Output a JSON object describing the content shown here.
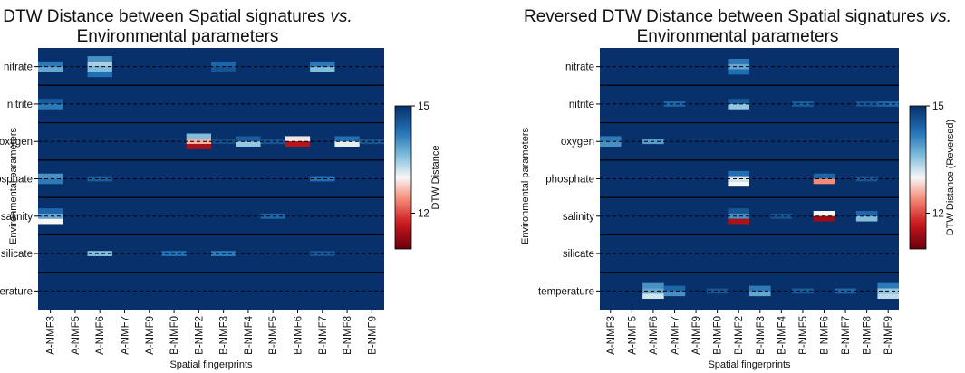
{
  "chart_data": [
    {
      "type": "heatmap",
      "title_line1": "DTW Distance between Spatial signatures",
      "title_vs": "vs.",
      "title_line2": "Environmental parameters",
      "xlabel": "Spatial fingerprints",
      "ylabel": "Environmental parameters",
      "colorbar_label": "DTW Distance",
      "colorbar_ticks": [
        "15",
        "12"
      ],
      "colorbar_range": [
        11,
        15
      ],
      "rows": [
        "nitrate",
        "nitrite",
        "oxygen",
        "phosphate",
        "salinity",
        "silicate",
        "temperature"
      ],
      "columns": [
        "A-NMF3",
        "A-NMF5",
        "A-NMF6",
        "A-NMF7",
        "A-NMF9",
        "B-NMF0",
        "B-NMF2",
        "B-NMF3",
        "B-NMF4",
        "B-NMF5",
        "B-NMF6",
        "B-NMF7",
        "B-NMF8",
        "B-NMF9"
      ],
      "default_value": 15,
      "highlights": [
        {
          "row": 0,
          "col": 0,
          "values": [
            14.2,
            13.8
          ]
        },
        {
          "row": 0,
          "col": 2,
          "values": [
            14.0,
            13.4,
            13.6,
            14.3
          ]
        },
        {
          "row": 0,
          "col": 7,
          "values": [
            14.4,
            14.6
          ]
        },
        {
          "row": 0,
          "col": 11,
          "values": [
            14.2,
            13.6
          ]
        },
        {
          "row": 1,
          "col": 0,
          "values": [
            14.5,
            14.2
          ]
        },
        {
          "row": 2,
          "col": 6,
          "values": [
            13.6,
            12.6,
            11.5
          ]
        },
        {
          "row": 2,
          "col": 7,
          "values": [
            14.7
          ]
        },
        {
          "row": 2,
          "col": 8,
          "values": [
            14.5,
            13.5
          ]
        },
        {
          "row": 2,
          "col": 9,
          "values": [
            14.6
          ]
        },
        {
          "row": 2,
          "col": 10,
          "values": [
            12.9,
            11.6
          ]
        },
        {
          "row": 2,
          "col": 12,
          "values": [
            14.3,
            13.1
          ]
        },
        {
          "row": 2,
          "col": 13,
          "values": [
            14.6
          ]
        },
        {
          "row": 3,
          "col": 0,
          "values": [
            14.0,
            14.2
          ]
        },
        {
          "row": 3,
          "col": 2,
          "values": [
            14.5
          ]
        },
        {
          "row": 3,
          "col": 11,
          "values": [
            14.3
          ]
        },
        {
          "row": 4,
          "col": 0,
          "values": [
            14.4,
            13.8,
            13.0
          ]
        },
        {
          "row": 4,
          "col": 9,
          "values": [
            14.4
          ]
        },
        {
          "row": 5,
          "col": 2,
          "values": [
            13.6
          ]
        },
        {
          "row": 5,
          "col": 5,
          "values": [
            14.3
          ]
        },
        {
          "row": 5,
          "col": 7,
          "values": [
            14.2
          ]
        },
        {
          "row": 5,
          "col": 11,
          "values": [
            14.6
          ]
        }
      ]
    },
    {
      "type": "heatmap",
      "title_line1": "Reversed DTW Distance between Spatial signatures",
      "title_vs": "vs.",
      "title_line2": "Environmental parameters",
      "xlabel": "Spatial fingerprints",
      "ylabel": "Environmental parameters",
      "colorbar_label": "DTW Distance (Reversed)",
      "colorbar_ticks": [
        "15",
        "12"
      ],
      "colorbar_range": [
        11,
        15
      ],
      "rows": [
        "nitrate",
        "nitrite",
        "oxygen",
        "phosphate",
        "salinity",
        "silicate",
        "temperature"
      ],
      "columns": [
        "A-NMF3",
        "A-NMF5",
        "A-NMF6",
        "A-NMF7",
        "A-NMF9",
        "B-NMF0",
        "B-NMF2",
        "B-NMF3",
        "B-NMF4",
        "B-NMF5",
        "B-NMF6",
        "B-NMF7",
        "B-NMF8",
        "B-NMF9"
      ],
      "default_value": 15,
      "highlights": [
        {
          "row": 0,
          "col": 6,
          "values": [
            14.2,
            13.8,
            14.3
          ]
        },
        {
          "row": 1,
          "col": 6,
          "values": [
            14.5,
            13.5
          ]
        },
        {
          "row": 1,
          "col": 3,
          "values": [
            14.4
          ]
        },
        {
          "row": 1,
          "col": 9,
          "values": [
            14.5
          ]
        },
        {
          "row": 1,
          "col": 12,
          "values": [
            14.6
          ]
        },
        {
          "row": 1,
          "col": 13,
          "values": [
            14.4
          ]
        },
        {
          "row": 2,
          "col": 0,
          "values": [
            14.2,
            14.0
          ]
        },
        {
          "row": 2,
          "col": 2,
          "values": [
            13.9
          ]
        },
        {
          "row": 3,
          "col": 6,
          "values": [
            14.3,
            13.2,
            13.0
          ]
        },
        {
          "row": 3,
          "col": 10,
          "values": [
            14.4,
            12.4
          ]
        },
        {
          "row": 3,
          "col": 12,
          "values": [
            14.6
          ]
        },
        {
          "row": 4,
          "col": 6,
          "values": [
            14.6,
            14.0,
            11.5
          ]
        },
        {
          "row": 4,
          "col": 8,
          "values": [
            14.6
          ]
        },
        {
          "row": 4,
          "col": 10,
          "values": [
            13.0,
            11.4
          ]
        },
        {
          "row": 4,
          "col": 12,
          "values": [
            14.4,
            13.6
          ]
        },
        {
          "row": 6,
          "col": 2,
          "values": [
            14.0,
            13.8,
            13.2
          ]
        },
        {
          "row": 6,
          "col": 3,
          "values": [
            14.4,
            14.0
          ]
        },
        {
          "row": 6,
          "col": 5,
          "values": [
            14.6
          ]
        },
        {
          "row": 6,
          "col": 7,
          "values": [
            14.2,
            13.8
          ]
        },
        {
          "row": 6,
          "col": 9,
          "values": [
            14.5
          ]
        },
        {
          "row": 6,
          "col": 11,
          "values": [
            14.4
          ]
        },
        {
          "row": 6,
          "col": 13,
          "values": [
            14.2,
            13.5,
            13.3
          ]
        }
      ]
    }
  ]
}
